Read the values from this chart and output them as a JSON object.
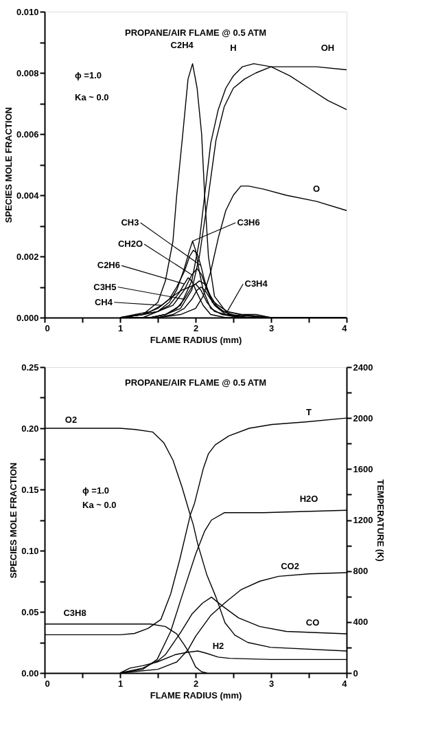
{
  "chart_data": [
    {
      "type": "line",
      "title": "PROPANE/AIR FLAME @ 0.5 ATM",
      "xlabel": "FLAME RADIUS (mm)",
      "ylabel": "SPECIES MOLE FRACTION",
      "annotations": [
        "ϕ =1.0",
        "Ka ~ 0.0"
      ],
      "xlim": [
        0,
        4
      ],
      "xticks": [
        0,
        {
          "value": 0.5,
          "label": null
        },
        1,
        {
          "value": 1.5,
          "label": null
        },
        2,
        {
          "value": 2.5,
          "label": null
        },
        3,
        {
          "value": 3.5,
          "label": null
        },
        4
      ],
      "ylim": [
        0,
        0.01
      ],
      "yticks": [
        {
          "value": 0,
          "label": "0.000"
        },
        {
          "value": 0.001,
          "label": null
        },
        0.002,
        {
          "value": 0.003,
          "label": null
        },
        0.004,
        {
          "value": 0.005,
          "label": null
        },
        0.006,
        {
          "value": 0.007,
          "label": null
        },
        0.008,
        {
          "value": 0.009,
          "label": null
        },
        {
          "value": 0.01,
          "label": "0.010"
        }
      ],
      "series": [
        {
          "name": "C2H4",
          "color": "#000000",
          "x": [
            1.0,
            1.3,
            1.5,
            1.6,
            1.7,
            1.75,
            1.83,
            1.9,
            1.96,
            2.02,
            2.08,
            2.12,
            2.17,
            2.25,
            2.4,
            2.6,
            3.0,
            4.0
          ],
          "values": [
            0,
            0.0001,
            0.0005,
            0.0012,
            0.0025,
            0.004,
            0.006,
            0.0078,
            0.0083,
            0.0075,
            0.006,
            0.004,
            0.002,
            0.0007,
            0.0002,
            0.0001,
            0,
            0
          ]
        },
        {
          "name": "H",
          "color": "#000000",
          "x": [
            1.0,
            1.4,
            1.6,
            1.8,
            1.95,
            2.05,
            2.12,
            2.2,
            2.3,
            2.4,
            2.5,
            2.62,
            2.77,
            3.0,
            3.25,
            3.5,
            3.75,
            4.0
          ],
          "values": [
            0,
            0,
            0.0001,
            0.0004,
            0.0012,
            0.0025,
            0.004,
            0.0057,
            0.0068,
            0.0075,
            0.0079,
            0.0082,
            0.0083,
            0.0082,
            0.0079,
            0.0075,
            0.0071,
            0.0068
          ]
        },
        {
          "name": "OH",
          "color": "#000000",
          "x": [
            1.0,
            1.4,
            1.6,
            1.8,
            1.95,
            2.05,
            2.17,
            2.27,
            2.38,
            2.5,
            2.65,
            2.8,
            3.0,
            3.3,
            3.6,
            4.0
          ],
          "values": [
            0,
            0,
            0.0001,
            0.0003,
            0.0009,
            0.002,
            0.004,
            0.0058,
            0.0069,
            0.0075,
            0.0078,
            0.008,
            0.0082,
            0.0082,
            0.0082,
            0.0081
          ]
        },
        {
          "name": "O",
          "color": "#000000",
          "x": [
            1.5,
            1.8,
            2.0,
            2.1,
            2.2,
            2.3,
            2.4,
            2.5,
            2.6,
            2.7,
            2.9,
            3.2,
            3.6,
            4.0
          ],
          "values": [
            0,
            0.0001,
            0.0003,
            0.0007,
            0.0015,
            0.0026,
            0.0035,
            0.004,
            0.0043,
            0.0043,
            0.0042,
            0.004,
            0.0038,
            0.0035
          ]
        },
        {
          "name": "C3H6",
          "color": "#000000",
          "x": [
            1.0,
            1.3,
            1.5,
            1.65,
            1.75,
            1.85,
            1.92,
            1.96,
            2.0,
            2.05,
            2.1,
            2.2,
            2.35,
            2.6,
            3.0,
            4.0
          ],
          "values": [
            0,
            0.0001,
            0.0002,
            0.0005,
            0.0009,
            0.0016,
            0.0022,
            0.0025,
            0.0022,
            0.0015,
            0.0009,
            0.0003,
            0.0001,
            0,
            0,
            0
          ]
        },
        {
          "name": "CH3",
          "color": "#000000",
          "x": [
            1.0,
            1.3,
            1.5,
            1.65,
            1.75,
            1.85,
            1.92,
            1.97,
            2.02,
            2.07,
            2.12,
            2.22,
            2.37,
            2.6,
            3.0,
            4.0
          ],
          "values": [
            0,
            0.0001,
            0.0003,
            0.0006,
            0.001,
            0.0015,
            0.002,
            0.0022,
            0.0021,
            0.0017,
            0.0012,
            0.0005,
            0.0002,
            0,
            0,
            0
          ]
        },
        {
          "name": "CH2O",
          "color": "#000000",
          "x": [
            1.0,
            1.3,
            1.5,
            1.7,
            1.85,
            1.95,
            2.02,
            2.08,
            2.15,
            2.25,
            2.4,
            2.6,
            3.0,
            4.0
          ],
          "values": [
            0,
            0.0001,
            0.0002,
            0.0004,
            0.0009,
            0.0014,
            0.0016,
            0.0014,
            0.0009,
            0.0004,
            0.0001,
            0,
            0,
            0
          ]
        },
        {
          "name": "C2H6",
          "color": "#000000",
          "x": [
            1.0,
            1.3,
            1.5,
            1.65,
            1.78,
            1.85,
            1.9,
            1.95,
            2.02,
            2.1,
            2.2,
            2.4,
            3.0,
            4.0
          ],
          "values": [
            0,
            0,
            0.0002,
            0.0004,
            0.0008,
            0.0011,
            0.0013,
            0.0012,
            0.0008,
            0.0004,
            0.0001,
            0,
            0,
            0
          ]
        },
        {
          "name": "C3H5",
          "color": "#000000",
          "x": [
            1.0,
            1.4,
            1.6,
            1.75,
            1.85,
            1.95,
            2.05,
            2.12,
            2.2,
            2.3,
            2.45,
            2.7,
            3.0,
            4.0
          ],
          "values": [
            0,
            0,
            0.0001,
            0.0003,
            0.0006,
            0.001,
            0.0012,
            0.0011,
            0.0007,
            0.0003,
            0.0001,
            0,
            0,
            0
          ]
        },
        {
          "name": "CH4",
          "color": "#000000",
          "x": [
            1.0,
            1.2,
            1.4,
            1.55,
            1.7,
            1.82,
            1.92,
            2.0,
            2.07,
            2.15,
            2.25,
            2.4,
            3.0,
            4.0
          ],
          "values": [
            0,
            0.0001,
            0.0002,
            0.0004,
            0.0007,
            0.0009,
            0.001,
            0.0011,
            0.0009,
            0.0005,
            0.0002,
            0.0001,
            0,
            0
          ]
        },
        {
          "name": "C3H4",
          "color": "#000000",
          "x": [
            1.0,
            1.5,
            1.7,
            1.85,
            1.95,
            2.02,
            2.07,
            2.12,
            2.2,
            2.3,
            2.42,
            2.6,
            2.8,
            3.0,
            3.5,
            4.0
          ],
          "values": [
            0,
            0,
            0.0001,
            0.0003,
            0.0006,
            0.0009,
            0.001,
            0.0009,
            0.0006,
            0.0004,
            0.0002,
            0.0001,
            0.0001,
            0,
            0,
            0
          ]
        }
      ]
    },
    {
      "type": "line",
      "title": "PROPANE/AIR FLAME @ 0.5 ATM",
      "xlabel": "FLAME RADIUS (mm)",
      "ylabel": "SPECIES MOLE FRACTION",
      "y2label": "TEMPERATURE (K)",
      "annotations": [
        "ϕ =1.0",
        "Ka ~ 0.0"
      ],
      "xlim": [
        0,
        4
      ],
      "xticks": [
        0,
        {
          "value": 0.5,
          "label": null
        },
        1,
        {
          "value": 1.5,
          "label": null
        },
        2,
        {
          "value": 2.5,
          "label": null
        },
        3,
        {
          "value": 3.5,
          "label": null
        },
        4
      ],
      "ylim": [
        0,
        0.25
      ],
      "yticks": [
        {
          "value": 0,
          "label": "0.00"
        },
        {
          "value": 0.025,
          "label": null
        },
        0.05,
        {
          "value": 0.075,
          "label": null
        },
        {
          "value": 0.1,
          "label": "0.10"
        },
        {
          "value": 0.125,
          "label": null
        },
        0.15,
        {
          "value": 0.175,
          "label": null
        },
        {
          "value": 0.2,
          "label": "0.20"
        },
        {
          "value": 0.225,
          "label": null
        },
        0.25
      ],
      "y2lim": [
        0,
        2400
      ],
      "y2ticks": [
        0,
        {
          "value": 200,
          "label": null
        },
        400,
        {
          "value": 600,
          "label": null
        },
        800,
        {
          "value": 1000,
          "label": null
        },
        1200,
        {
          "value": 1400,
          "label": null
        },
        1600,
        {
          "value": 1800,
          "label": null
        },
        2000,
        {
          "value": 2200,
          "label": null
        },
        2400
      ],
      "series": [
        {
          "name": "O2",
          "color": "#000000",
          "x": [
            0,
            1.0,
            1.2,
            1.43,
            1.58,
            1.7,
            1.82,
            1.92,
            1.97,
            2.03,
            2.15,
            2.27,
            2.39,
            2.52,
            2.69,
            2.99,
            4.0
          ],
          "values": [
            0.2,
            0.2,
            0.199,
            0.197,
            0.188,
            0.174,
            0.152,
            0.131,
            0.121,
            0.105,
            0.08,
            0.062,
            0.041,
            0.031,
            0.025,
            0.021,
            0.018
          ]
        },
        {
          "name": "T",
          "color": "#000000",
          "axis": "y2",
          "x": [
            0,
            1.0,
            1.19,
            1.37,
            1.54,
            1.67,
            1.79,
            1.93,
            1.985,
            2.1,
            2.17,
            2.26,
            2.44,
            2.71,
            3.01,
            3.46,
            4.0
          ],
          "values": [
            300,
            300,
            310,
            350,
            420,
            620,
            890,
            1240,
            1330,
            1600,
            1720,
            1790,
            1860,
            1920,
            1950,
            1970,
            2000
          ]
        },
        {
          "name": "H2O",
          "color": "#000000",
          "x": [
            1.0,
            1.3,
            1.49,
            1.67,
            1.82,
            2.0,
            2.12,
            2.21,
            2.38,
            2.9,
            4.0
          ],
          "values": [
            0,
            0.003,
            0.011,
            0.034,
            0.063,
            0.097,
            0.116,
            0.125,
            0.131,
            0.131,
            0.133
          ]
        },
        {
          "name": "CO2",
          "color": "#000000",
          "x": [
            1.0,
            1.5,
            1.75,
            1.9,
            2.0,
            2.2,
            2.4,
            2.6,
            2.85,
            3.1,
            3.5,
            4.0
          ],
          "values": [
            0,
            0.003,
            0.009,
            0.019,
            0.03,
            0.047,
            0.058,
            0.068,
            0.075,
            0.079,
            0.081,
            0.082
          ]
        },
        {
          "name": "CO",
          "color": "#000000",
          "x": [
            1.0,
            1.3,
            1.5,
            1.6,
            1.8,
            1.95,
            2.09,
            2.21,
            2.35,
            2.57,
            2.85,
            3.2,
            3.6,
            4.0
          ],
          "values": [
            0,
            0.004,
            0.01,
            0.015,
            0.033,
            0.048,
            0.057,
            0.062,
            0.055,
            0.045,
            0.038,
            0.034,
            0.033,
            0.032
          ]
        },
        {
          "name": "C3H8",
          "color": "#000000",
          "x": [
            0,
            1.0,
            1.4,
            1.6,
            1.75,
            1.85,
            1.9,
            2.0,
            2.08,
            2.15
          ],
          "values": [
            0.04,
            0.04,
            0.04,
            0.038,
            0.032,
            0.023,
            0.018,
            0.005,
            0.001,
            0
          ]
        },
        {
          "name": "H2",
          "color": "#000000",
          "x": [
            1.0,
            1.13,
            1.3,
            1.49,
            1.73,
            1.9,
            2.03,
            2.15,
            2.3,
            2.45,
            3.0,
            4.0
          ],
          "values": [
            0,
            0.004,
            0.006,
            0.009,
            0.015,
            0.017,
            0.018,
            0.016,
            0.013,
            0.012,
            0.011,
            0.011
          ]
        }
      ]
    }
  ]
}
